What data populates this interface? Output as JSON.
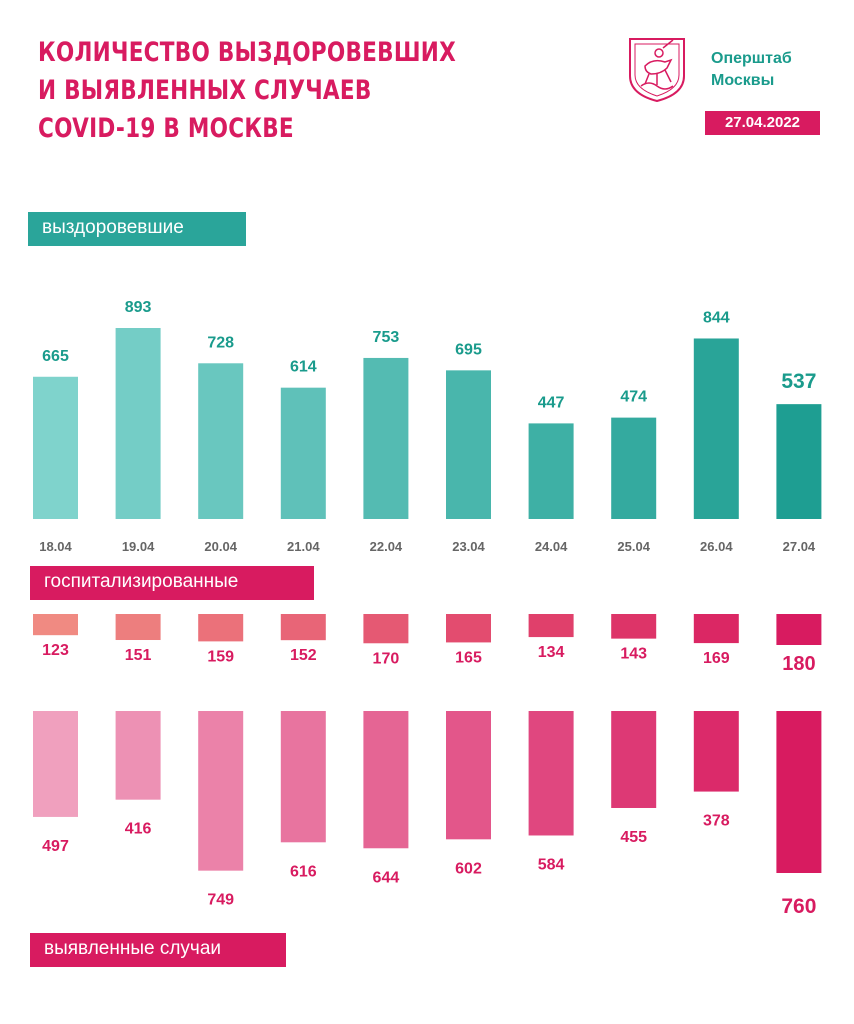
{
  "header": {
    "title_lines": [
      "КОЛИЧЕСТВО ВЫЗДОРОВЕВШИХ",
      "И ВЫЯВЛЕННЫХ СЛУЧАЕВ",
      "COVID-19 В МОСКВЕ"
    ],
    "org_lines": [
      "Оперштаб",
      "Москвы"
    ],
    "date": "27.04.2022",
    "emblem_icon": "moscow-coat-of-arms-icon"
  },
  "colors": {
    "brand_pink": "#d81b60",
    "brand_teal": "#1a9b8c",
    "date_axis": "#666666"
  },
  "chart_data": [
    {
      "type": "bar",
      "series_label": "выздоровевшие",
      "categories": [
        "18.04",
        "19.04",
        "20.04",
        "21.04",
        "22.04",
        "23.04",
        "24.04",
        "25.04",
        "26.04",
        "27.04"
      ],
      "values": [
        665,
        893,
        728,
        614,
        753,
        695,
        447,
        474,
        844,
        537
      ],
      "color_from": "#7fd3cc",
      "color_to": "#1e9e92",
      "label_color": "#1a9b8c"
    },
    {
      "type": "bar",
      "series_label": "госпитализированные",
      "categories": [
        "18.04",
        "19.04",
        "20.04",
        "21.04",
        "22.04",
        "23.04",
        "24.04",
        "25.04",
        "26.04",
        "27.04"
      ],
      "values": [
        123,
        151,
        159,
        152,
        170,
        165,
        134,
        143,
        169,
        180
      ],
      "color_from": "#f08a82",
      "color_to": "#d81b60",
      "label_color": "#d81b60"
    },
    {
      "type": "bar",
      "series_label": "выявленные случаи",
      "categories": [
        "18.04",
        "19.04",
        "20.04",
        "21.04",
        "22.04",
        "23.04",
        "24.04",
        "25.04",
        "26.04",
        "27.04"
      ],
      "values": [
        497,
        416,
        749,
        616,
        644,
        602,
        584,
        455,
        378,
        760
      ],
      "color_from": "#f0a0be",
      "color_to": "#d81b60",
      "label_color": "#d81b60"
    }
  ]
}
